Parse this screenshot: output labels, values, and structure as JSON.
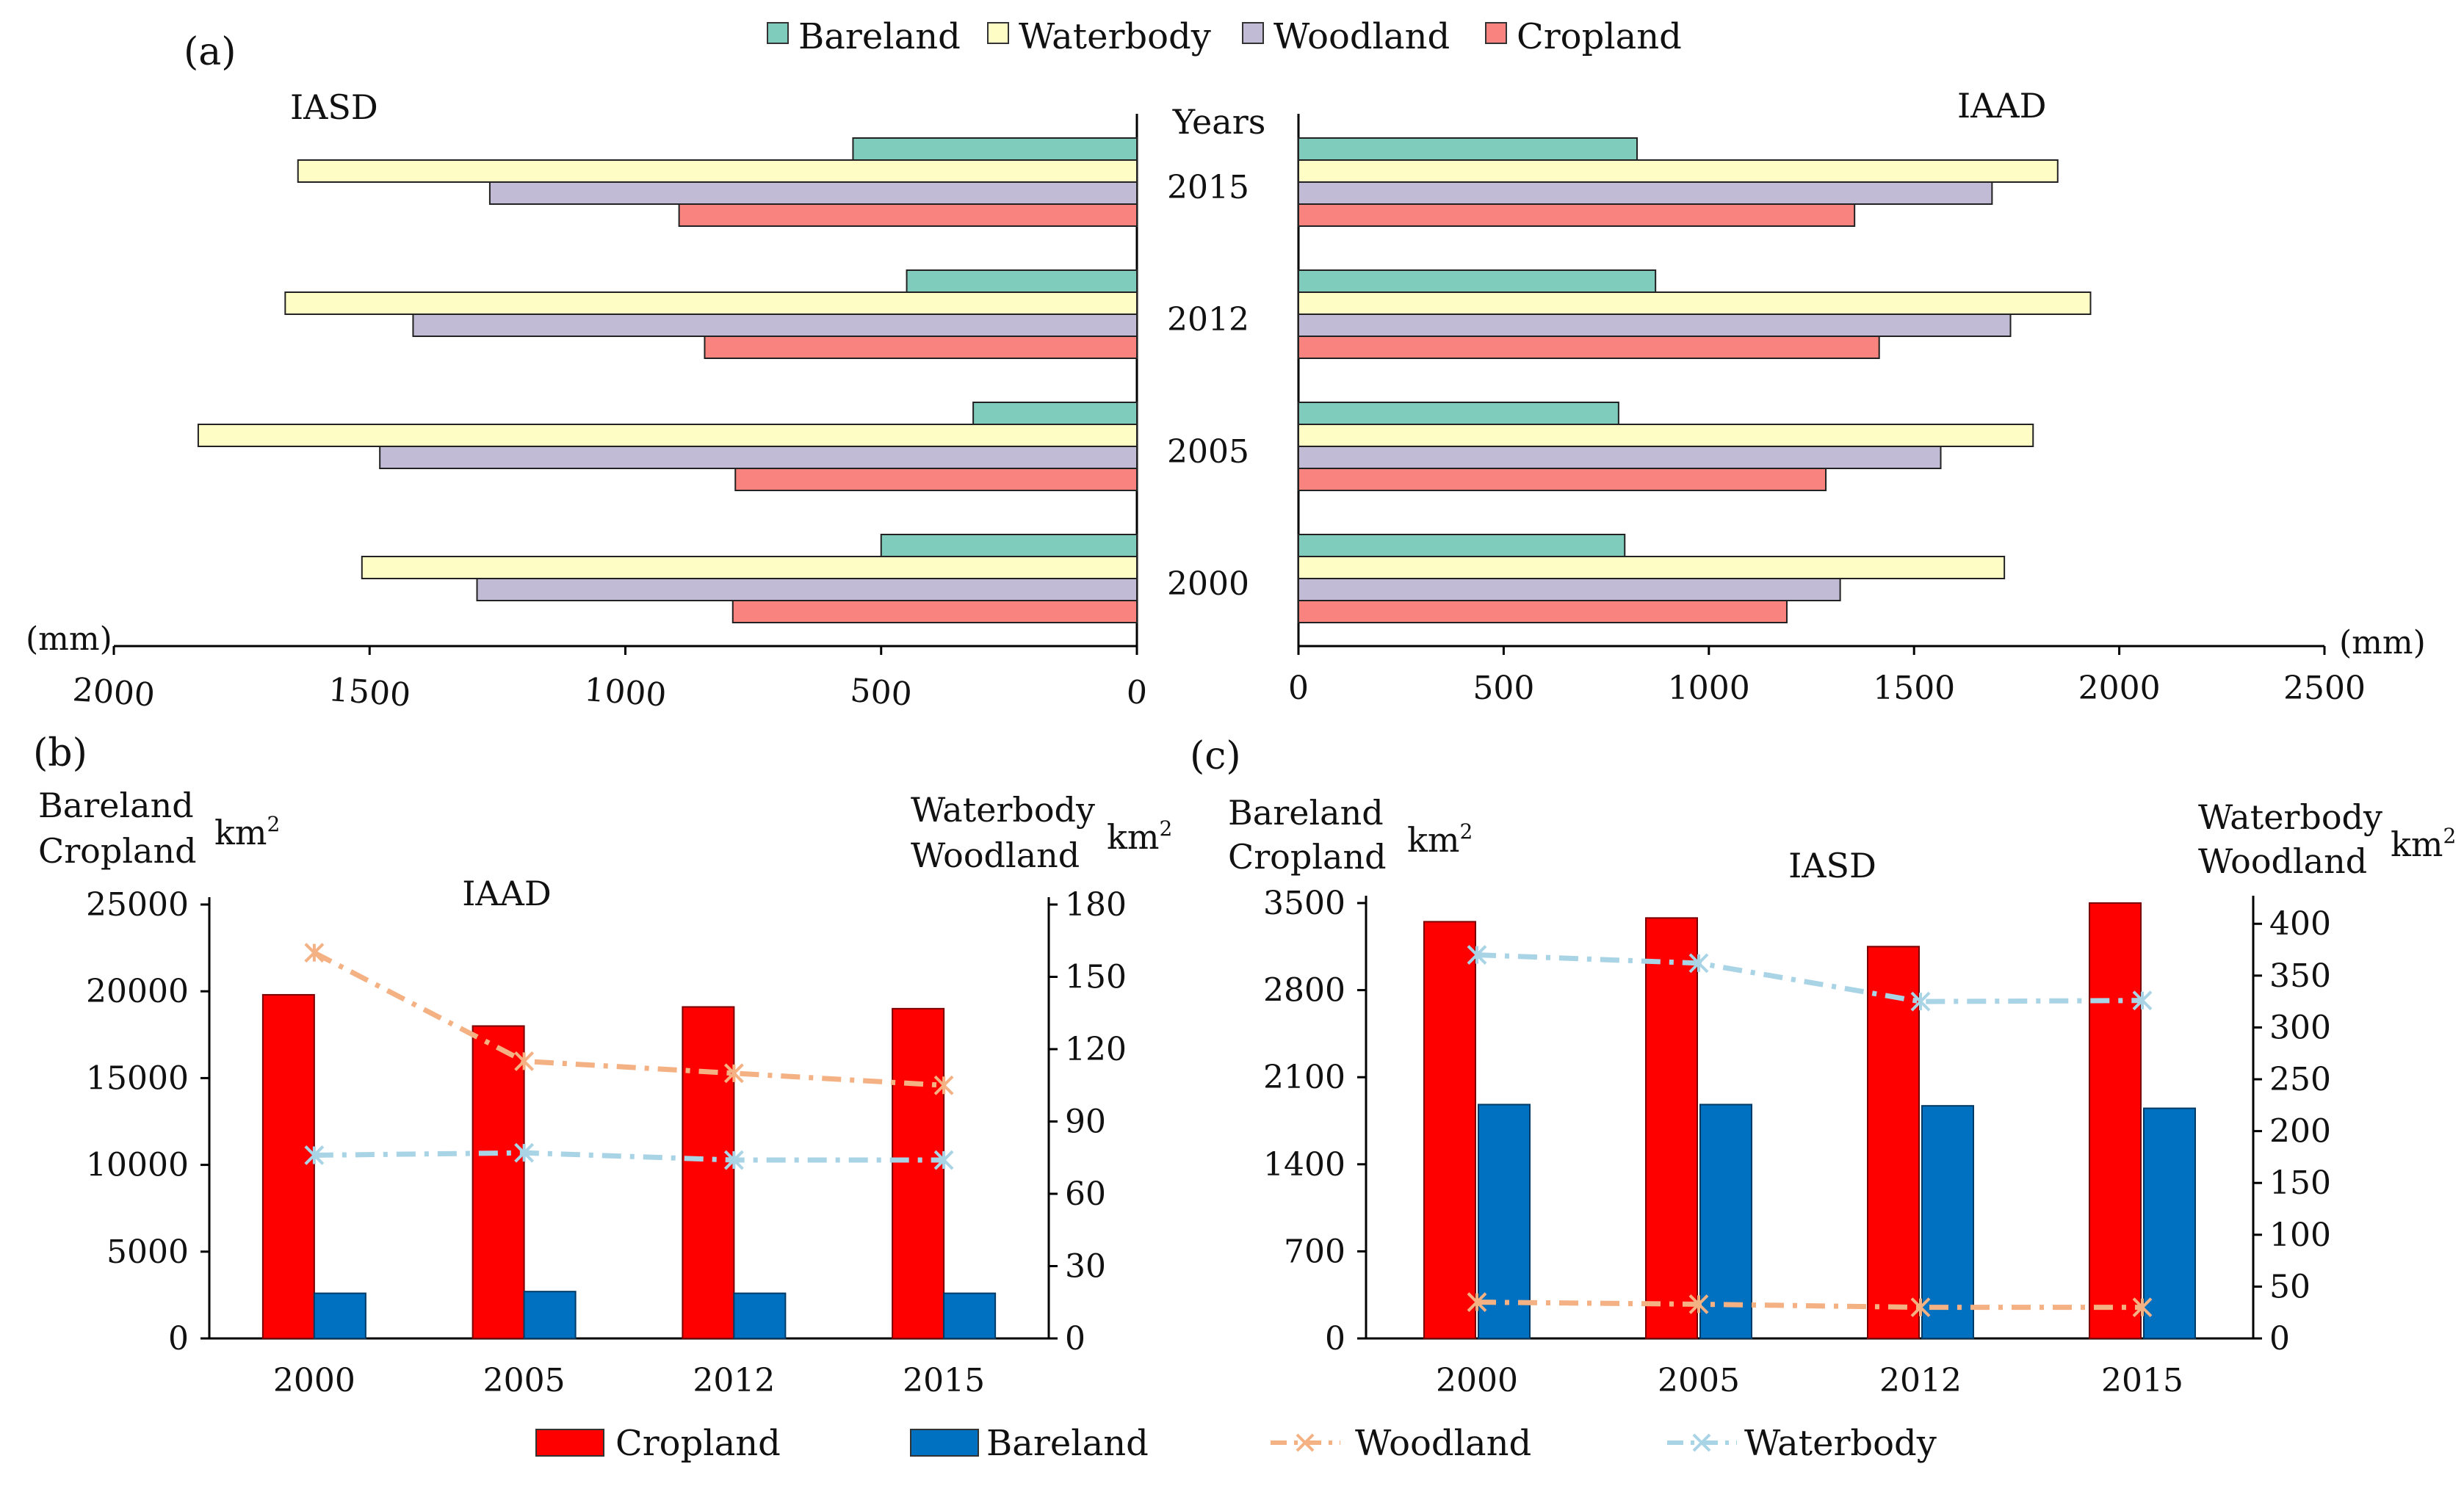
{
  "chart_data": [
    {
      "id": "a",
      "panel_label": "(a)",
      "type": "bar",
      "orientation": "horizontal-back-to-back",
      "legend": [
        "Bareland",
        "Waterbody",
        "Woodland",
        "Cropland"
      ],
      "colors": {
        "Bareland": "#7fccbc",
        "Waterbody": "#fdfdc5",
        "Woodland": "#c2bbd6",
        "Cropland": "#f9837f"
      },
      "center_label": "Years",
      "categories": [
        "2015",
        "2012",
        "2005",
        "2000"
      ],
      "left": {
        "title": "IASD",
        "unit": "(mm)",
        "xlim": [
          0,
          2000
        ],
        "ticks": [
          2000,
          1500,
          1000,
          500,
          0
        ],
        "series": [
          {
            "name": "Bareland",
            "values": [
              555,
              450,
              320,
              500
            ]
          },
          {
            "name": "Waterbody",
            "values": [
              1640,
              1665,
              1835,
              1515
            ]
          },
          {
            "name": "Woodland",
            "values": [
              1265,
              1415,
              1480,
              1290
            ]
          },
          {
            "name": "Cropland",
            "values": [
              895,
              845,
              785,
              790
            ]
          }
        ]
      },
      "right": {
        "title": "IAAD",
        "unit": "(mm)",
        "xlim": [
          0,
          2500
        ],
        "ticks": [
          0,
          500,
          1000,
          1500,
          2000,
          2500
        ],
        "series": [
          {
            "name": "Bareland",
            "values": [
              825,
              870,
              780,
              795
            ]
          },
          {
            "name": "Waterbody",
            "values": [
              1850,
              1930,
              1790,
              1720
            ]
          },
          {
            "name": "Woodland",
            "values": [
              1690,
              1735,
              1565,
              1320
            ]
          },
          {
            "name": "Cropland",
            "values": [
              1355,
              1415,
              1285,
              1190
            ]
          }
        ]
      }
    },
    {
      "id": "b",
      "panel_label": "(b)",
      "type": "bar-line-combo",
      "title": "IAAD",
      "categories": [
        "2000",
        "2005",
        "2012",
        "2015"
      ],
      "left_axis": {
        "label_lines": [
          "Bareland",
          "Cropland"
        ],
        "unit": "km",
        "unit_sup": "2",
        "ylim": [
          0,
          25000
        ],
        "ticks": [
          0,
          5000,
          10000,
          15000,
          20000,
          25000
        ]
      },
      "right_axis": {
        "label_lines": [
          "Waterbody",
          "Woodland"
        ],
        "unit": "km",
        "unit_sup": "2",
        "ylim": [
          0,
          180
        ],
        "ticks": [
          0,
          30,
          60,
          90,
          120,
          150,
          180
        ]
      },
      "bars": [
        {
          "name": "Cropland",
          "axis": "left",
          "values": [
            19800,
            18000,
            19100,
            19000
          ]
        },
        {
          "name": "Bareland",
          "axis": "left",
          "values": [
            2600,
            2700,
            2600,
            2600
          ]
        }
      ],
      "lines": [
        {
          "name": "Woodland",
          "axis": "right",
          "values": [
            160,
            115,
            110,
            105
          ]
        },
        {
          "name": "Waterbody",
          "axis": "right",
          "values": [
            76,
            77,
            74,
            74
          ]
        }
      ]
    },
    {
      "id": "c",
      "panel_label": "(c)",
      "type": "bar-line-combo",
      "title": "IASD",
      "categories": [
        "2000",
        "2005",
        "2012",
        "2015"
      ],
      "left_axis": {
        "label_lines": [
          "Bareland",
          "Cropland"
        ],
        "unit": "km",
        "unit_sup": "2",
        "ylim": [
          0,
          3500
        ],
        "ticks": [
          0,
          700,
          1400,
          2100,
          2800,
          3500
        ]
      },
      "right_axis": {
        "label_lines": [
          "Waterbody",
          "Woodland"
        ],
        "unit": "km",
        "unit_sup": "2",
        "ylim": [
          0,
          420
        ],
        "ticks": [
          0,
          50,
          100,
          150,
          200,
          250,
          300,
          350,
          400
        ]
      },
      "bars": [
        {
          "name": "Cropland",
          "axis": "left",
          "values": [
            3350,
            3380,
            3150,
            3500
          ]
        },
        {
          "name": "Bareland",
          "axis": "left",
          "values": [
            1880,
            1880,
            1870,
            1850
          ]
        }
      ],
      "lines": [
        {
          "name": "Woodland",
          "axis": "right",
          "values": [
            35,
            33,
            30,
            30
          ]
        },
        {
          "name": "Waterbody",
          "axis": "right",
          "values": [
            370,
            362,
            325,
            326
          ]
        }
      ]
    }
  ],
  "bottom_legend": [
    {
      "name": "Cropland",
      "kind": "bar",
      "color": "#ff0000"
    },
    {
      "name": "Bareland",
      "kind": "bar",
      "color": "#0070c0"
    },
    {
      "name": "Woodland",
      "kind": "line",
      "color": "#f4b183"
    },
    {
      "name": "Waterbody",
      "kind": "line",
      "color": "#a9d4e6"
    }
  ]
}
